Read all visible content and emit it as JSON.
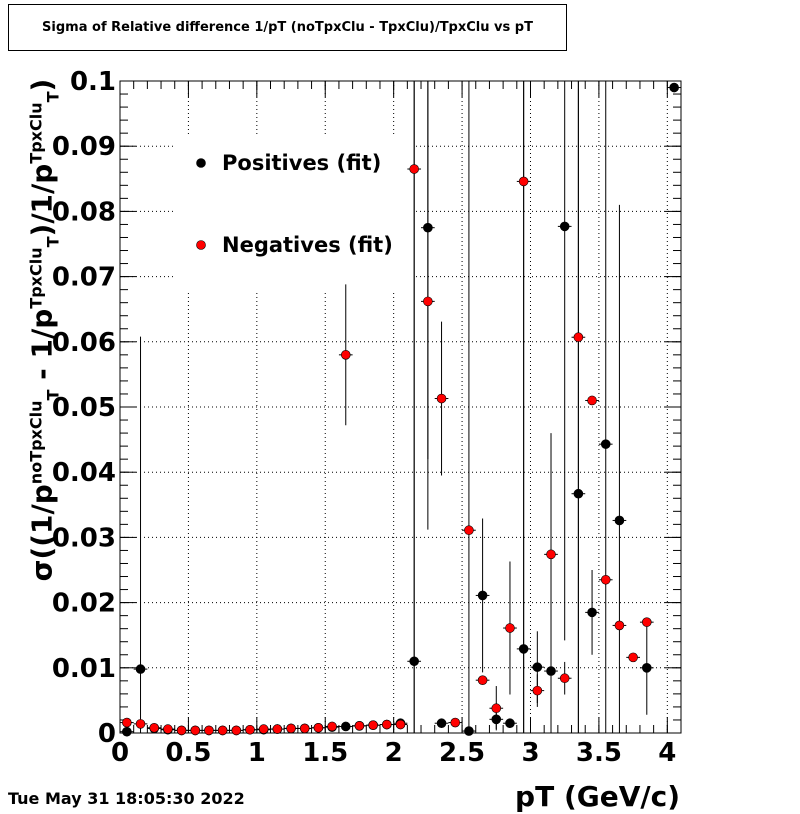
{
  "chart_data": {
    "type": "scatter",
    "title": "Sigma of Relative difference 1/pT (noTpxClu - TpxClu)/TpxClu vs pT",
    "xlabel": "pT (GeV/c)",
    "ylabel": {
      "prefix": "σ((1/p",
      "sup1": "noTpxClu",
      "sub1": "T",
      "middle": " - 1/p",
      "sup2": "TpxClu",
      "sub2": "T",
      "mid2": ")/1/p",
      "sup3": "TpxClu",
      "sub3": "T",
      "suffix": ")"
    },
    "xlim": [
      0,
      4.1
    ],
    "ylim": [
      0,
      0.1
    ],
    "x_ticks": [
      0,
      0.5,
      1,
      1.5,
      2,
      2.5,
      3,
      3.5,
      4
    ],
    "x_tick_labels": [
      "0",
      "0.5",
      "1",
      "1.5",
      "2",
      "2.5",
      "3",
      "3.5",
      "4"
    ],
    "y_ticks": [
      0,
      0.01,
      0.02,
      0.03,
      0.04,
      0.05,
      0.06,
      0.07,
      0.08,
      0.09,
      0.1
    ],
    "y_tick_labels": [
      "0",
      "0.01",
      "0.02",
      "0.03",
      "0.04",
      "0.05",
      "0.06",
      "0.07",
      "0.08",
      "0.09",
      "0.1"
    ],
    "grid": true,
    "legend_position": "top-left",
    "series": [
      {
        "name": "Positives (fit)",
        "color": "#000000",
        "points": [
          {
            "x": 0.05,
            "y": 0.0002,
            "err": 0.0
          },
          {
            "x": 0.15,
            "y": 0.0098,
            "err": 0.051
          },
          {
            "x": 0.25,
            "y": 0.0007,
            "err": 0.0002
          },
          {
            "x": 0.35,
            "y": 0.0005,
            "err": 0.0002
          },
          {
            "x": 0.45,
            "y": 0.0004,
            "err": 0.0001
          },
          {
            "x": 0.55,
            "y": 0.0004,
            "err": 0.0001
          },
          {
            "x": 0.65,
            "y": 0.0004,
            "err": 0.0001
          },
          {
            "x": 0.75,
            "y": 0.0004,
            "err": 0.0001
          },
          {
            "x": 0.85,
            "y": 0.0004,
            "err": 0.0001
          },
          {
            "x": 0.95,
            "y": 0.0005,
            "err": 0.0001
          },
          {
            "x": 1.05,
            "y": 0.0005,
            "err": 0.0001
          },
          {
            "x": 1.15,
            "y": 0.0006,
            "err": 0.0001
          },
          {
            "x": 1.25,
            "y": 0.0007,
            "err": 0.0002
          },
          {
            "x": 1.35,
            "y": 0.0007,
            "err": 0.0002
          },
          {
            "x": 1.45,
            "y": 0.0008,
            "err": 0.0002
          },
          {
            "x": 1.55,
            "y": 0.0009,
            "err": 0.0002
          },
          {
            "x": 1.65,
            "y": 0.001,
            "err": 0.0002
          },
          {
            "x": 1.75,
            "y": 0.0011,
            "err": 0.0002
          },
          {
            "x": 1.85,
            "y": 0.0012,
            "err": 0.0003
          },
          {
            "x": 1.95,
            "y": 0.0013,
            "err": 0.0003
          },
          {
            "x": 2.05,
            "y": 0.0015,
            "err": 0.0004
          },
          {
            "x": 2.15,
            "y": 0.011,
            "err": 0.1
          },
          {
            "x": 2.25,
            "y": 0.0775,
            "err": 0.0355
          },
          {
            "x": 2.35,
            "y": 0.0015,
            "err": 0.0003
          },
          {
            "x": 2.55,
            "y": 0.0003,
            "err": 0.1
          },
          {
            "x": 2.65,
            "y": 0.0211,
            "err": 0.0118
          },
          {
            "x": 2.75,
            "y": 0.0021,
            "err": 0.0015
          },
          {
            "x": 2.85,
            "y": 0.0015,
            "err": 0.0005
          },
          {
            "x": 2.95,
            "y": 0.0129,
            "err": 0.1
          },
          {
            "x": 3.05,
            "y": 0.0101,
            "err": 0.0055
          },
          {
            "x": 3.15,
            "y": 0.0095,
            "err": 0.0365
          },
          {
            "x": 3.25,
            "y": 0.0777,
            "err": 0.0635
          },
          {
            "x": 3.35,
            "y": 0.0367,
            "err": 0.1
          },
          {
            "x": 3.45,
            "y": 0.0185,
            "err": 0.0065
          },
          {
            "x": 3.55,
            "y": 0.0443,
            "err": 0.1
          },
          {
            "x": 3.65,
            "y": 0.0326,
            "err": 0.0484
          },
          {
            "x": 3.85,
            "y": 0.01,
            "err": 0.0072
          },
          {
            "x": 4.05,
            "y": 0.099,
            "err": 0.0
          }
        ]
      },
      {
        "name": "Negatives (fit)",
        "color": "#ff0000",
        "points": [
          {
            "x": 0.05,
            "y": 0.0016,
            "err": 0.0001
          },
          {
            "x": 0.15,
            "y": 0.0014,
            "err": 0.0001
          },
          {
            "x": 0.25,
            "y": 0.0008,
            "err": 0.0001
          },
          {
            "x": 0.35,
            "y": 0.0006,
            "err": 0.0001
          },
          {
            "x": 0.45,
            "y": 0.0004,
            "err": 0.0001
          },
          {
            "x": 0.55,
            "y": 0.0004,
            "err": 0.0001
          },
          {
            "x": 0.65,
            "y": 0.0004,
            "err": 0.0001
          },
          {
            "x": 0.75,
            "y": 0.0004,
            "err": 0.0001
          },
          {
            "x": 0.85,
            "y": 0.0004,
            "err": 0.0001
          },
          {
            "x": 0.95,
            "y": 0.0005,
            "err": 0.0001
          },
          {
            "x": 1.05,
            "y": 0.0006,
            "err": 0.0001
          },
          {
            "x": 1.15,
            "y": 0.0006,
            "err": 0.0001
          },
          {
            "x": 1.25,
            "y": 0.0007,
            "err": 0.0001
          },
          {
            "x": 1.35,
            "y": 0.0007,
            "err": 0.0001
          },
          {
            "x": 1.45,
            "y": 0.0008,
            "err": 0.0001
          },
          {
            "x": 1.55,
            "y": 0.001,
            "err": 0.0002
          },
          {
            "x": 1.65,
            "y": 0.058,
            "err": 0.0108
          },
          {
            "x": 1.75,
            "y": 0.0011,
            "err": 0.0002
          },
          {
            "x": 1.85,
            "y": 0.0012,
            "err": 0.0002
          },
          {
            "x": 1.95,
            "y": 0.0013,
            "err": 0.0002
          },
          {
            "x": 2.05,
            "y": 0.0013,
            "err": 0.0003
          },
          {
            "x": 2.15,
            "y": 0.0865,
            "err": 0.1
          },
          {
            "x": 2.25,
            "y": 0.0662,
            "err": 0.035
          },
          {
            "x": 2.35,
            "y": 0.0513,
            "err": 0.0118
          },
          {
            "x": 2.45,
            "y": 0.0016,
            "err": 0.0003
          },
          {
            "x": 2.55,
            "y": 0.0311,
            "err": 0.0
          },
          {
            "x": 2.65,
            "y": 0.0081,
            "err": 0.0
          },
          {
            "x": 2.75,
            "y": 0.0038,
            "err": 0.0034
          },
          {
            "x": 2.85,
            "y": 0.0161,
            "err": 0.0102
          },
          {
            "x": 2.95,
            "y": 0.0846,
            "err": 0.1
          },
          {
            "x": 3.05,
            "y": 0.0065,
            "err": 0.0025
          },
          {
            "x": 3.15,
            "y": 0.0274,
            "err": 0.0
          },
          {
            "x": 3.25,
            "y": 0.0084,
            "err": 0.0025
          },
          {
            "x": 3.35,
            "y": 0.0607,
            "err": 0.1
          },
          {
            "x": 3.45,
            "y": 0.051,
            "err": 0.0
          },
          {
            "x": 3.55,
            "y": 0.0235,
            "err": 0.0
          },
          {
            "x": 3.65,
            "y": 0.0165,
            "err": 0.0
          },
          {
            "x": 3.75,
            "y": 0.0116,
            "err": 0.0
          },
          {
            "x": 3.85,
            "y": 0.017,
            "err": 0.0
          }
        ]
      }
    ]
  },
  "footer": {
    "timestamp": "Tue May 31 18:05:30 2022"
  }
}
